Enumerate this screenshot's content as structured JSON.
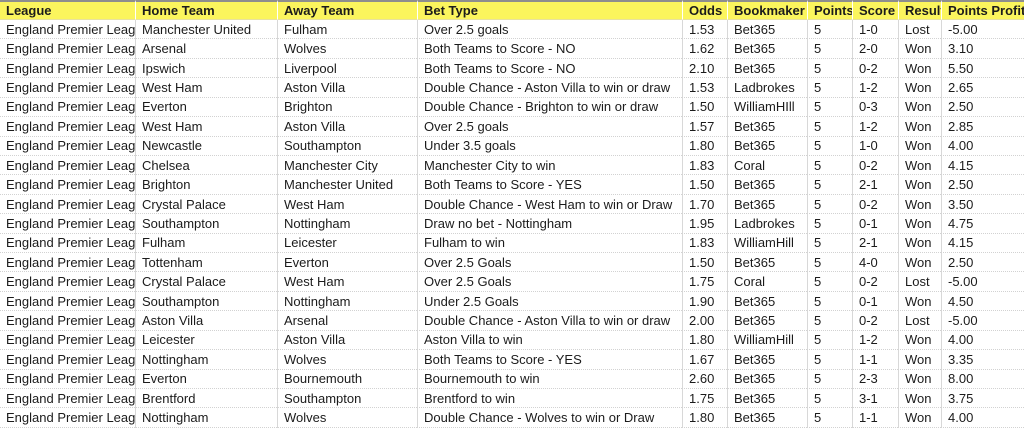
{
  "colors": {
    "header_bg": "#FBF55D",
    "header_top_border": "#8E8E8E",
    "grid_vertical": "#D8D8D8",
    "grid_horizontal": "#D2D2D2",
    "text": "#1B1B1B"
  },
  "table": {
    "columns": [
      {
        "key": "league",
        "label": "League"
      },
      {
        "key": "home-team",
        "label": "Home Team"
      },
      {
        "key": "away-team",
        "label": "Away Team"
      },
      {
        "key": "bet-type",
        "label": "Bet Type"
      },
      {
        "key": "odds",
        "label": "Odds"
      },
      {
        "key": "bookmaker",
        "label": "Bookmaker"
      },
      {
        "key": "points",
        "label": "Points"
      },
      {
        "key": "score",
        "label": "Score"
      },
      {
        "key": "result",
        "label": "Result"
      },
      {
        "key": "points-profit",
        "label": "Points Profit"
      }
    ],
    "rows": [
      [
        "England Premier League",
        "Manchester United",
        "Fulham",
        "Over 2.5 goals",
        "1.53",
        "Bet365",
        "5",
        "1-0",
        "Lost",
        "-5.00"
      ],
      [
        "England Premier League",
        "Arsenal",
        "Wolves",
        "Both Teams to Score - NO",
        "1.62",
        "Bet365",
        "5",
        "2-0",
        "Won",
        "3.10"
      ],
      [
        "England Premier League",
        "Ipswich",
        "Liverpool",
        "Both Teams to Score - NO",
        "2.10",
        "Bet365",
        "5",
        "0-2",
        "Won",
        "5.50"
      ],
      [
        "England Premier League",
        "West Ham",
        "Aston Villa",
        "Double Chance - Aston Villa to win or draw",
        "1.53",
        "Ladbrokes",
        "5",
        "1-2",
        "Won",
        "2.65"
      ],
      [
        "England Premier League",
        "Everton",
        "Brighton",
        "Double Chance - Brighton to win or draw",
        "1.50",
        "WilliamHIll",
        "5",
        "0-3",
        "Won",
        "2.50"
      ],
      [
        "England Premier League",
        "West Ham",
        "Aston Villa",
        "Over 2.5 goals",
        "1.57",
        "Bet365",
        "5",
        "1-2",
        "Won",
        "2.85"
      ],
      [
        "England Premier League",
        "Newcastle",
        "Southampton",
        "Under 3.5 goals",
        "1.80",
        "Bet365",
        "5",
        "1-0",
        "Won",
        "4.00"
      ],
      [
        "England Premier League",
        "Chelsea",
        "Manchester City",
        "Manchester City to win",
        "1.83",
        "Coral",
        "5",
        "0-2",
        "Won",
        "4.15"
      ],
      [
        "England Premier League",
        "Brighton",
        "Manchester United",
        "Both Teams to Score - YES",
        "1.50",
        "Bet365",
        "5",
        "2-1",
        "Won",
        "2.50"
      ],
      [
        "England Premier League",
        "Crystal Palace",
        "West Ham",
        "Double Chance - West Ham to win or Draw",
        "1.70",
        "Bet365",
        "5",
        "0-2",
        "Won",
        "3.50"
      ],
      [
        "England Premier League",
        "Southampton",
        "Nottingham",
        "Draw no bet - Nottingham",
        "1.95",
        "Ladbrokes",
        "5",
        "0-1",
        "Won",
        "4.75"
      ],
      [
        "England Premier League",
        "Fulham",
        "Leicester",
        "Fulham to win",
        "1.83",
        "WilliamHill",
        "5",
        "2-1",
        "Won",
        "4.15"
      ],
      [
        "England Premier League",
        "Tottenham",
        "Everton",
        "Over 2.5 Goals",
        "1.50",
        "Bet365",
        "5",
        "4-0",
        "Won",
        "2.50"
      ],
      [
        "England Premier League",
        "Crystal Palace",
        "West Ham",
        "Over 2.5 Goals",
        "1.75",
        "Coral",
        "5",
        "0-2",
        "Lost",
        "-5.00"
      ],
      [
        "England Premier League",
        "Southampton",
        "Nottingham",
        "Under 2.5 Goals",
        "1.90",
        "Bet365",
        "5",
        "0-1",
        "Won",
        "4.50"
      ],
      [
        "England Premier League",
        "Aston Villa",
        "Arsenal",
        "Double Chance - Aston Villa to win or draw",
        "2.00",
        "Bet365",
        "5",
        "0-2",
        "Lost",
        "-5.00"
      ],
      [
        "England Premier League",
        "Leicester",
        "Aston Villa",
        "Aston Villa to win",
        "1.80",
        "WilliamHill",
        "5",
        "1-2",
        "Won",
        "4.00"
      ],
      [
        "England Premier League",
        "Nottingham",
        "Wolves",
        "Both Teams to Score - YES",
        "1.67",
        "Bet365",
        "5",
        "1-1",
        "Won",
        "3.35"
      ],
      [
        "England Premier League",
        "Everton",
        "Bournemouth",
        "Bournemouth to win",
        "2.60",
        "Bet365",
        "5",
        "2-3",
        "Won",
        "8.00"
      ],
      [
        "England Premier League",
        "Brentford",
        "Southampton",
        "Brentford to win",
        "1.75",
        "Bet365",
        "5",
        "3-1",
        "Won",
        "3.75"
      ],
      [
        "England Premier League",
        "Nottingham",
        "Wolves",
        "Double Chance - Wolves to win or Draw",
        "1.80",
        "Bet365",
        "5",
        "1-1",
        "Won",
        "4.00"
      ]
    ]
  }
}
